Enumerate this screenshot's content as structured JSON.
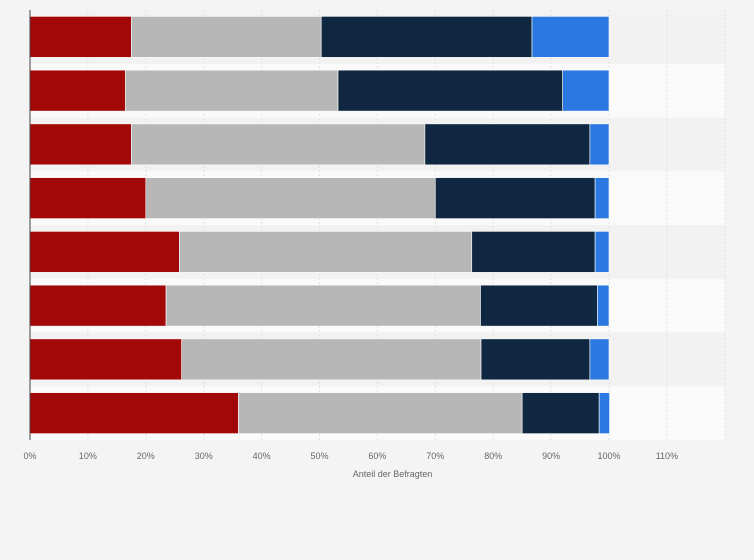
{
  "chart_data": {
    "type": "bar",
    "orientation": "horizontal",
    "stacked": true,
    "categories": [
      "",
      "",
      "",
      "",
      "",
      "",
      "",
      ""
    ],
    "series": [
      {
        "values": [
          17.5,
          16.5,
          17.5,
          20,
          25.8,
          23.5,
          26.2,
          36
        ],
        "color": "#a30808"
      },
      {
        "values": [
          32.8,
          36.7,
          50.7,
          50,
          50.5,
          54.3,
          51.7,
          49
        ],
        "color": "#b7b7b7"
      },
      {
        "values": [
          36.4,
          38.8,
          28.5,
          27.6,
          21.3,
          20.2,
          18.8,
          13.3
        ],
        "color": "#0f2740"
      },
      {
        "values": [
          13.3,
          8.0,
          3.3,
          2.4,
          2.4,
          2.0,
          3.3,
          1.8
        ],
        "color": "#2b78e0"
      }
    ],
    "xlabel": "Anteil der Befragten",
    "xlim": [
      0,
      120
    ],
    "xticks": [
      {
        "value": 0,
        "label": "0%"
      },
      {
        "value": 10,
        "label": "10%"
      },
      {
        "value": 20,
        "label": "20%"
      },
      {
        "value": 30,
        "label": "30%"
      },
      {
        "value": 40,
        "label": "40%"
      },
      {
        "value": 50,
        "label": "50%"
      },
      {
        "value": 60,
        "label": "60%"
      },
      {
        "value": 70,
        "label": "70%"
      },
      {
        "value": 80,
        "label": "80%"
      },
      {
        "value": 90,
        "label": "90%"
      },
      {
        "value": 100,
        "label": "100%"
      },
      {
        "value": 110,
        "label": "110%"
      }
    ],
    "grid": true,
    "legend": "none"
  }
}
